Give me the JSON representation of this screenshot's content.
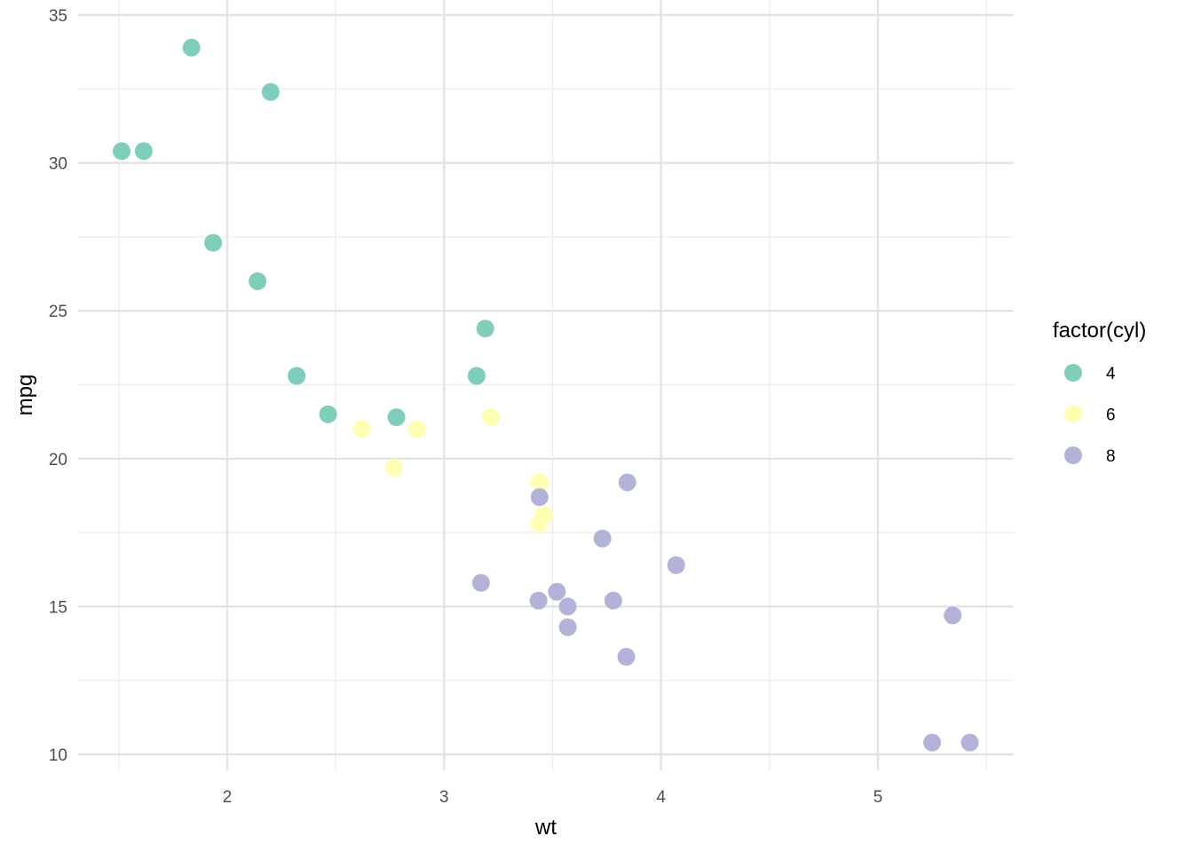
{
  "chart_data": {
    "type": "scatter",
    "title": "",
    "xlabel": "wt",
    "ylabel": "mpg",
    "xlim": [
      1.5,
      5.5
    ],
    "ylim": [
      9.4,
      35
    ],
    "x_major_ticks": [
      2,
      3,
      4,
      5
    ],
    "x_minor_ticks": [
      1.5,
      2.5,
      3.5,
      4.5,
      5.5
    ],
    "y_major_ticks": [
      10,
      15,
      20,
      25,
      30,
      35
    ],
    "y_minor_ticks": [
      12.5,
      17.5,
      22.5,
      27.5,
      32.5
    ],
    "x_tick_labels": [
      "2",
      "3",
      "4",
      "5"
    ],
    "y_tick_labels": [
      "10",
      "15",
      "20",
      "25",
      "30",
      "35"
    ],
    "grid": true,
    "legend": {
      "title": "factor(cyl)",
      "placement": "right",
      "entries": [
        {
          "label": "4",
          "color": "#7fcdbb"
        },
        {
          "label": "6",
          "color": "#ffffb3"
        },
        {
          "label": "8",
          "color": "#b3b3d9"
        }
      ]
    },
    "series": [
      {
        "name": "4",
        "color": "#7fcdbb",
        "points": [
          {
            "x": 2.32,
            "y": 22.8
          },
          {
            "x": 3.19,
            "y": 24.4
          },
          {
            "x": 3.15,
            "y": 22.8
          },
          {
            "x": 2.2,
            "y": 32.4
          },
          {
            "x": 1.615,
            "y": 30.4
          },
          {
            "x": 1.835,
            "y": 33.9
          },
          {
            "x": 2.465,
            "y": 21.5
          },
          {
            "x": 1.935,
            "y": 27.3
          },
          {
            "x": 2.14,
            "y": 26.0
          },
          {
            "x": 1.513,
            "y": 30.4
          },
          {
            "x": 2.78,
            "y": 21.4
          }
        ]
      },
      {
        "name": "6",
        "color": "#ffffb3",
        "points": [
          {
            "x": 2.62,
            "y": 21.0
          },
          {
            "x": 2.875,
            "y": 21.0
          },
          {
            "x": 3.215,
            "y": 21.4
          },
          {
            "x": 3.46,
            "y": 18.1
          },
          {
            "x": 3.44,
            "y": 19.2
          },
          {
            "x": 3.44,
            "y": 17.8
          },
          {
            "x": 2.77,
            "y": 19.7
          }
        ]
      },
      {
        "name": "8",
        "color": "#b3b3d9",
        "points": [
          {
            "x": 3.44,
            "y": 18.7
          },
          {
            "x": 3.57,
            "y": 14.3
          },
          {
            "x": 4.07,
            "y": 16.4
          },
          {
            "x": 3.73,
            "y": 17.3
          },
          {
            "x": 3.78,
            "y": 15.2
          },
          {
            "x": 5.25,
            "y": 10.4
          },
          {
            "x": 5.424,
            "y": 10.4
          },
          {
            "x": 5.345,
            "y": 14.7
          },
          {
            "x": 3.52,
            "y": 15.5
          },
          {
            "x": 3.435,
            "y": 15.2
          },
          {
            "x": 3.84,
            "y": 13.3
          },
          {
            "x": 3.845,
            "y": 19.2
          },
          {
            "x": 3.17,
            "y": 15.8
          },
          {
            "x": 3.57,
            "y": 15.0
          }
        ]
      }
    ]
  }
}
